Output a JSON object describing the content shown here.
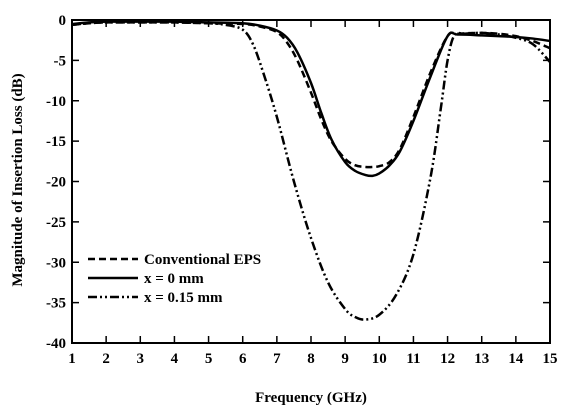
{
  "chart_data": {
    "type": "line",
    "title": "",
    "xlabel": "Frequency (GHz)",
    "ylabel": "Magnitude of Insertion Loss (dB)",
    "xlim": [
      1,
      15
    ],
    "ylim": [
      -40,
      0
    ],
    "xticks": [
      1,
      2,
      3,
      4,
      5,
      6,
      7,
      8,
      9,
      10,
      11,
      12,
      13,
      14,
      15
    ],
    "yticks": [
      0,
      -5,
      -10,
      -15,
      -20,
      -25,
      -30,
      -35,
      -40
    ],
    "grid": false,
    "legend_position": "bottom-left",
    "series": [
      {
        "name": "Conventional EPS",
        "style": "dashed",
        "x": [
          1,
          1.5,
          2,
          3,
          4,
          5,
          6,
          6.5,
          7,
          7.3,
          7.6,
          8,
          8.3,
          8.6,
          9,
          9.3,
          9.6,
          9.8,
          10,
          10.3,
          10.6,
          11,
          11.5,
          12,
          12.3,
          13,
          13.5,
          14,
          14.5,
          15
        ],
        "y": [
          -0.6,
          -0.4,
          -0.3,
          -0.3,
          -0.3,
          -0.4,
          -0.5,
          -0.8,
          -1.5,
          -2.8,
          -5.0,
          -9.0,
          -12.3,
          -15.0,
          -17.2,
          -18.0,
          -18.2,
          -18.2,
          -18.1,
          -17.6,
          -16.0,
          -12.0,
          -6.5,
          -2.0,
          -1.7,
          -1.6,
          -1.7,
          -2.0,
          -2.6,
          -3.5
        ]
      },
      {
        "name": "x = 0 mm",
        "style": "solid",
        "x": [
          1,
          1.5,
          2,
          3,
          4,
          5,
          6,
          6.5,
          7,
          7.3,
          7.6,
          8,
          8.3,
          8.6,
          9,
          9.3,
          9.6,
          9.8,
          10,
          10.3,
          10.6,
          11,
          11.5,
          12,
          12.3,
          13,
          13.5,
          14,
          14.5,
          15
        ],
        "y": [
          -0.5,
          -0.3,
          -0.2,
          -0.2,
          -0.2,
          -0.3,
          -0.4,
          -0.7,
          -1.3,
          -2.2,
          -4.0,
          -7.8,
          -11.5,
          -14.8,
          -17.6,
          -18.7,
          -19.2,
          -19.3,
          -19.0,
          -18.0,
          -16.3,
          -12.5,
          -7.0,
          -2.0,
          -1.8,
          -1.9,
          -2.0,
          -2.1,
          -2.3,
          -2.6
        ]
      },
      {
        "name": "x = 0.15 mm",
        "style": "dash-dot-dot",
        "x": [
          1,
          1.5,
          2,
          3,
          4,
          5,
          5.5,
          6,
          6.3,
          6.6,
          7,
          7.5,
          8,
          8.5,
          9,
          9.3,
          9.6,
          10,
          10.5,
          11,
          11.5,
          11.8,
          12,
          12.2,
          12.5,
          13,
          13.5,
          14,
          14.5,
          15
        ],
        "y": [
          -0.6,
          -0.4,
          -0.3,
          -0.3,
          -0.3,
          -0.4,
          -0.6,
          -1.2,
          -3.0,
          -6.5,
          -12.0,
          -20.0,
          -27.0,
          -32.5,
          -35.8,
          -36.8,
          -37.1,
          -36.5,
          -34.0,
          -29.0,
          -19.5,
          -11.0,
          -5.0,
          -1.9,
          -1.7,
          -1.6,
          -1.8,
          -2.2,
          -3.0,
          -5.2
        ]
      }
    ]
  },
  "axes": {
    "x_title": "Frequency (GHz)",
    "y_title": "Magnitude of Insertion Loss (dB)"
  },
  "legend": {
    "items": [
      "Conventional EPS",
      "x = 0 mm",
      "x = 0.15 mm"
    ]
  }
}
